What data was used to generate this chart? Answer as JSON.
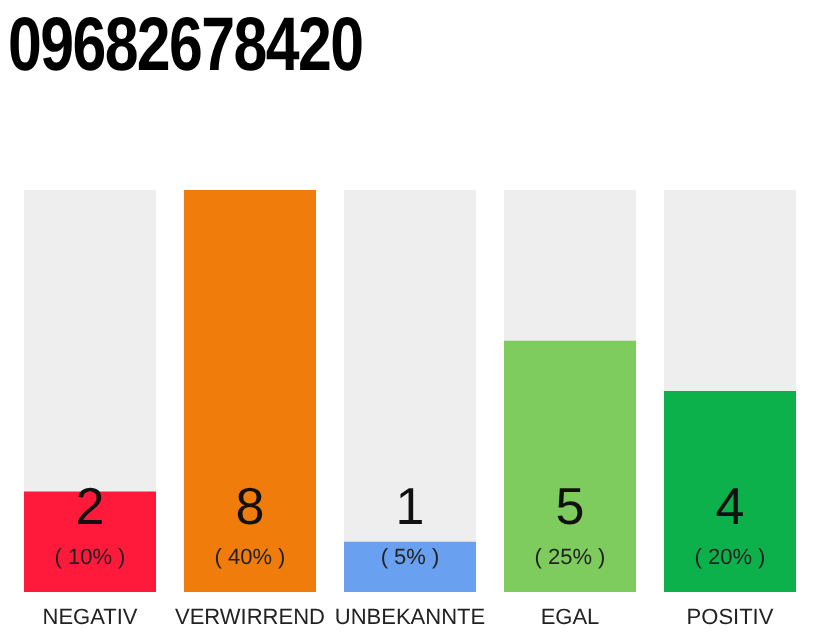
{
  "chart_data": {
    "type": "bar",
    "title": "09682678420",
    "categories": [
      "NEGATIV",
      "VERWIRREND",
      "UNBEKANNTE",
      "EGAL",
      "POSITIV"
    ],
    "values": [
      2,
      8,
      1,
      5,
      4
    ],
    "colors": [
      "#ff1a3c",
      "#f07c0c",
      "#6aa0f0",
      "#7ecb5e",
      "#0db14b"
    ],
    "data_labels": true,
    "annotations": [
      "( 10% )",
      "( 40% )",
      "( 5% )",
      "( 25% )",
      "( 20% )"
    ]
  }
}
